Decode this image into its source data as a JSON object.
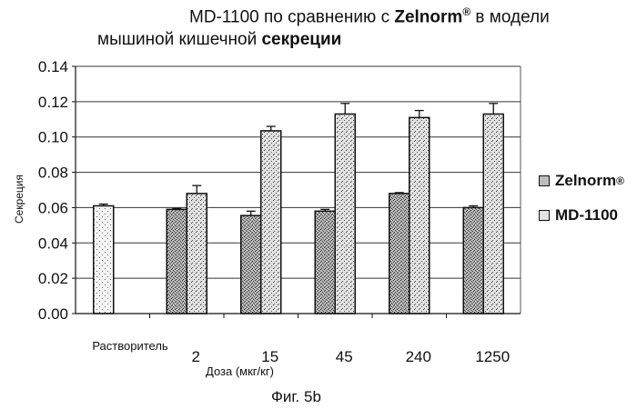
{
  "title": {
    "line1_prefix": "MD-1100 по сравнению с ",
    "line1_brand": "Zelnorm",
    "line1_reg": "®",
    "line1_suffix": " в модели",
    "line2_prefix": "мышиной кишечной ",
    "line2_bold": "секреции"
  },
  "axes": {
    "ylabel": "Секреция",
    "xlabel": "Доза (мкг/кг)",
    "yticks": [
      "0.14",
      "0.12",
      "0.10",
      "0.08",
      "0.06",
      "0.04",
      "0.02",
      "0.00"
    ]
  },
  "legend": {
    "items": [
      {
        "label": "Zelnorm",
        "reg": "®"
      },
      {
        "label": "MD-1100",
        "reg": ""
      }
    ]
  },
  "categories": [
    "Растворитель",
    "2",
    "15",
    "45",
    "240",
    "1250"
  ],
  "caption": "Фиг. 5b",
  "chart_data": {
    "type": "bar",
    "title": "MD-1100 по сравнению с Zelnorm® в модели мышиной кишечной секреции",
    "xlabel": "Доза (мкг/кг)",
    "ylabel": "Секреция",
    "ylim": [
      0,
      0.14
    ],
    "yticks": [
      0,
      0.02,
      0.04,
      0.06,
      0.08,
      0.1,
      0.12,
      0.14
    ],
    "grid": true,
    "legend_position": "right",
    "categories": [
      "Растворитель",
      "2",
      "15",
      "45",
      "240",
      "1250"
    ],
    "series": [
      {
        "name": "Vehicle",
        "values": [
          0.061,
          null,
          null,
          null,
          null,
          null
        ],
        "errors": [
          0.001,
          null,
          null,
          null,
          null,
          null
        ]
      },
      {
        "name": "Zelnorm®",
        "values": [
          null,
          0.059,
          0.0555,
          0.058,
          0.068,
          0.06
        ],
        "errors": [
          null,
          0.0005,
          0.0025,
          0.001,
          0.0005,
          0.001
        ]
      },
      {
        "name": "MD-1100",
        "values": [
          null,
          0.068,
          0.1035,
          0.113,
          0.111,
          0.113
        ],
        "errors": [
          null,
          0.0045,
          0.0025,
          0.006,
          0.004,
          0.006
        ]
      }
    ]
  }
}
